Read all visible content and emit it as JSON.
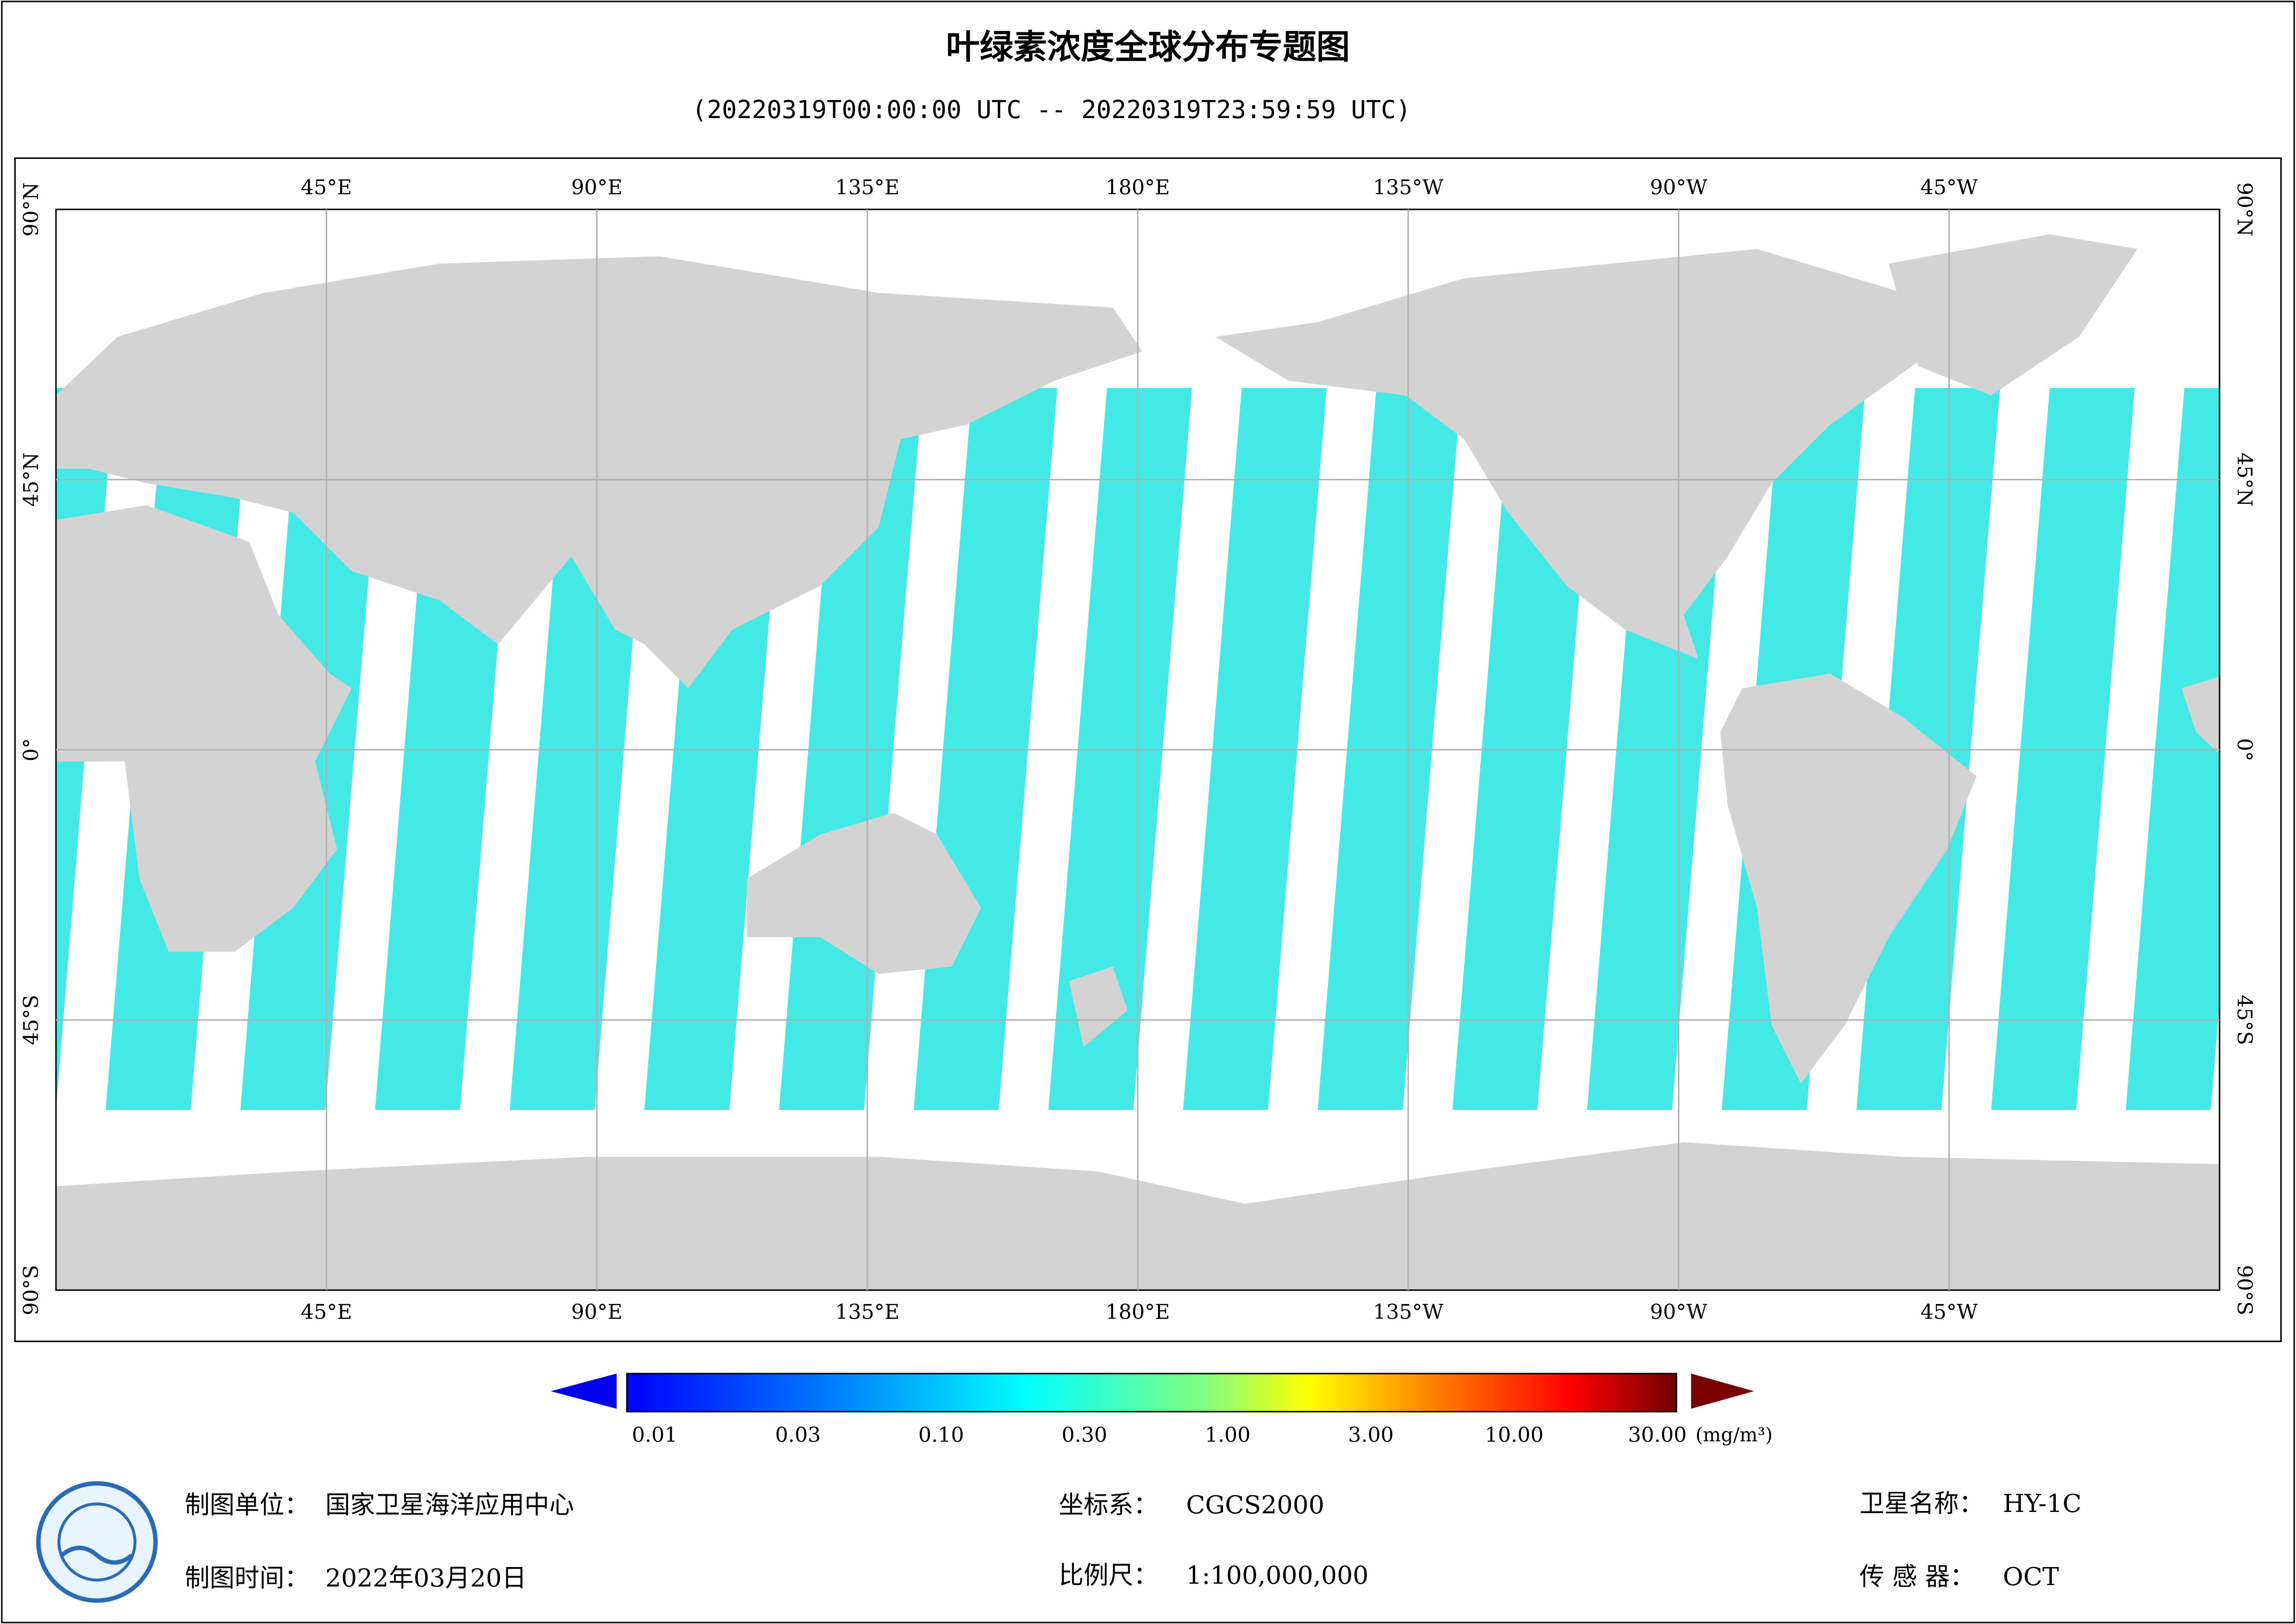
{
  "header": {
    "title": "叶绿素浓度全球分布专题图",
    "subtitle": "(20220319T00:00:00 UTC -- 20220319T23:59:59 UTC)"
  },
  "map": {
    "lon_labels": [
      "45°E",
      "90°E",
      "135°E",
      "180°E",
      "135°W",
      "90°W",
      "45°W"
    ],
    "lat_labels": [
      "90°N",
      "45°N",
      "0°",
      "45°S",
      "90°S"
    ]
  },
  "colorbar": {
    "labels": [
      "0.01",
      "0.03",
      "0.10",
      "0.30",
      "1.00",
      "3.00",
      "10.00",
      "30.00"
    ],
    "unit": "(mg/m³)"
  },
  "footer": {
    "producer_label": "制图单位：",
    "producer": "国家卫星海洋应用中心",
    "date_label": "制图时间：",
    "date": "2022年03月20日",
    "crs_label": "坐标系：",
    "crs": "CGCS2000",
    "scale_label": "比例尺：",
    "scale": "1:100,000,000",
    "satellite_label": "卫星名称：",
    "satellite": "HY-1C",
    "sensor_label": "传 感 器：",
    "sensor": "OCT"
  }
}
